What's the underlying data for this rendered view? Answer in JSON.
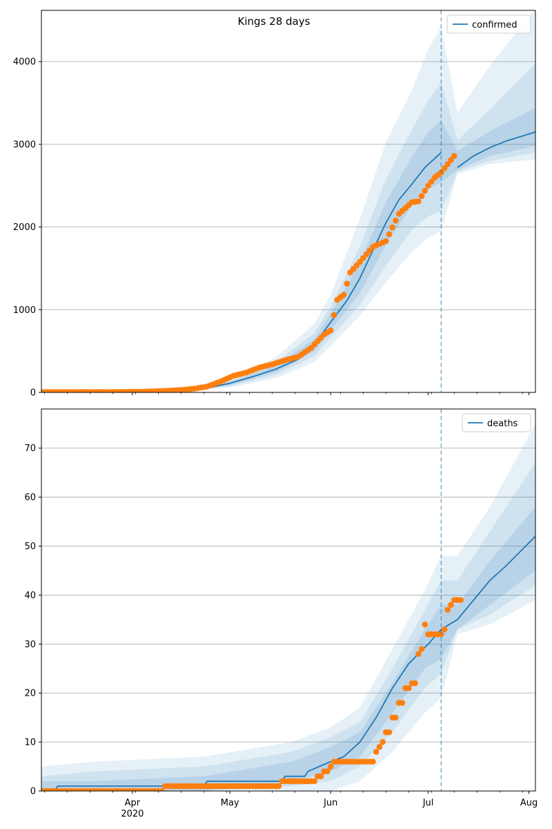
{
  "title": "Kings 28 days",
  "colors": {
    "model": "#1f77b4",
    "observed": "#ff7f0e",
    "band": "#1f77b4",
    "grid": "#b0b0b0",
    "vline": "#1f77b4"
  },
  "x_axis": {
    "type": "date",
    "range": [
      "2020-03-04",
      "2020-08-03"
    ],
    "major_ticks": [
      {
        "date": "2020-04-01",
        "label": "Apr"
      },
      {
        "date": "2020-05-01",
        "label": "May"
      },
      {
        "date": "2020-06-01",
        "label": "Jun"
      },
      {
        "date": "2020-07-01",
        "label": "Jul"
      },
      {
        "date": "2020-08-01",
        "label": "Aug"
      }
    ],
    "year_label": {
      "date": "2020-04-01",
      "label": "2020"
    },
    "minor_tick_interval_days": 7
  },
  "chart_data": [
    {
      "type": "line",
      "panel": "top",
      "title": "Kings 28 days",
      "legend": {
        "label": "confirmed",
        "position": "top-right"
      },
      "ylim": [
        0,
        4620
      ],
      "yticks": [
        0,
        1000,
        2000,
        3000,
        4000
      ],
      "grid": "y",
      "forecast_start": "2020-07-05",
      "model": {
        "name": "confirmed",
        "dates": [
          "2020-03-04",
          "2020-03-20",
          "2020-04-01",
          "2020-04-15",
          "2020-04-25",
          "2020-05-01",
          "2020-05-08",
          "2020-05-15",
          "2020-05-22",
          "2020-05-27",
          "2020-06-01",
          "2020-06-06",
          "2020-06-10",
          "2020-06-14",
          "2020-06-18",
          "2020-06-22",
          "2020-06-26",
          "2020-06-30",
          "2020-07-05",
          "2020-07-10",
          "2020-07-15",
          "2020-07-20",
          "2020-07-25",
          "2020-08-03"
        ],
        "values": [
          5,
          8,
          10,
          20,
          60,
          110,
          190,
          280,
          400,
          580,
          850,
          1110,
          1380,
          1720,
          2050,
          2330,
          2520,
          2720,
          2900,
          2720,
          2860,
          2960,
          3040,
          3150
        ]
      },
      "bands": [
        {
          "level": "outer",
          "dates": [
            "2020-03-04",
            "2020-04-15",
            "2020-05-01",
            "2020-05-15",
            "2020-05-27",
            "2020-06-01",
            "2020-06-10",
            "2020-06-18",
            "2020-06-26",
            "2020-07-01",
            "2020-07-05",
            "2020-07-10",
            "2020-07-20",
            "2020-08-03"
          ],
          "upper": [
            15,
            35,
            170,
            420,
            830,
            1180,
            2100,
            3020,
            3650,
            4150,
            4420,
            3380,
            3950,
            4650
          ],
          "lower": [
            0,
            8,
            60,
            170,
            370,
            560,
            930,
            1330,
            1700,
            1870,
            1950,
            2640,
            2760,
            2820
          ]
        },
        {
          "level": "middle",
          "dates": [
            "2020-03-04",
            "2020-04-15",
            "2020-05-01",
            "2020-05-15",
            "2020-05-27",
            "2020-06-01",
            "2020-06-10",
            "2020-06-18",
            "2020-06-26",
            "2020-07-01",
            "2020-07-05",
            "2020-07-10",
            "2020-07-20",
            "2020-08-03"
          ],
          "upper": [
            11,
            28,
            140,
            360,
            720,
            1040,
            1760,
            2580,
            3180,
            3530,
            3750,
            3050,
            3420,
            3980
          ],
          "lower": [
            1,
            11,
            75,
            210,
            440,
            660,
            1060,
            1530,
            1970,
            2130,
            2190,
            2670,
            2800,
            2900
          ]
        },
        {
          "level": "inner",
          "dates": [
            "2020-03-04",
            "2020-04-15",
            "2020-05-01",
            "2020-05-15",
            "2020-05-27",
            "2020-06-01",
            "2020-06-10",
            "2020-06-18",
            "2020-06-26",
            "2020-07-01",
            "2020-07-05",
            "2020-07-10",
            "2020-07-20",
            "2020-08-03"
          ],
          "upper": [
            8,
            24,
            125,
            320,
            650,
            950,
            1580,
            2300,
            2850,
            3150,
            3290,
            2920,
            3160,
            3440
          ],
          "lower": [
            3,
            15,
            90,
            240,
            500,
            750,
            1200,
            1780,
            2260,
            2460,
            2540,
            2690,
            2860,
            2980
          ]
        }
      ],
      "observed": {
        "name": "observed",
        "dates": [
          "2020-03-04",
          "2020-03-12",
          "2020-03-20",
          "2020-03-28",
          "2020-04-05",
          "2020-04-12",
          "2020-04-16",
          "2020-04-20",
          "2020-04-24",
          "2020-04-28",
          "2020-05-02",
          "2020-05-06",
          "2020-05-10",
          "2020-05-14",
          "2020-05-18",
          "2020-05-22",
          "2020-05-26",
          "2020-05-30",
          "2020-06-01",
          "2020-06-03",
          "2020-06-05",
          "2020-06-07",
          "2020-06-10",
          "2020-06-14",
          "2020-06-18",
          "2020-06-22",
          "2020-06-26",
          "2020-06-28",
          "2020-07-01",
          "2020-07-03",
          "2020-07-05",
          "2020-07-07",
          "2020-07-09"
        ],
        "values": [
          5,
          5,
          5,
          5,
          10,
          20,
          30,
          45,
          70,
          130,
          200,
          240,
          300,
          340,
          390,
          430,
          540,
          700,
          750,
          1120,
          1180,
          1450,
          1580,
          1760,
          1830,
          2160,
          2300,
          2310,
          2500,
          2600,
          2660,
          2760,
          2860
        ]
      }
    },
    {
      "type": "line",
      "panel": "bottom",
      "legend": {
        "label": "deaths",
        "position": "top-right"
      },
      "ylim": [
        0,
        78
      ],
      "yticks": [
        0,
        10,
        20,
        30,
        40,
        50,
        60,
        70
      ],
      "grid": "y",
      "forecast_start": "2020-07-05",
      "model": {
        "name": "deaths",
        "dates": [
          "2020-03-04",
          "2020-03-08",
          "2020-03-09",
          "2020-04-23",
          "2020-04-24",
          "2020-05-17",
          "2020-05-18",
          "2020-05-24",
          "2020-05-25",
          "2020-06-01",
          "2020-06-05",
          "2020-06-10",
          "2020-06-15",
          "2020-06-20",
          "2020-06-25",
          "2020-07-01",
          "2020-07-05",
          "2020-07-10",
          "2020-07-15",
          "2020-07-20",
          "2020-07-25",
          "2020-08-03"
        ],
        "values": [
          0,
          0,
          1,
          1,
          2,
          2,
          3,
          3,
          4,
          6,
          7,
          10,
          15,
          21,
          26,
          30,
          33,
          35,
          39,
          43,
          46,
          52
        ]
      },
      "bands": [
        {
          "level": "outer",
          "dates": [
            "2020-03-04",
            "2020-03-20",
            "2020-04-23",
            "2020-05-20",
            "2020-06-01",
            "2020-06-10",
            "2020-06-20",
            "2020-06-30",
            "2020-07-05",
            "2020-07-10",
            "2020-07-20",
            "2020-08-03"
          ],
          "upper": [
            5,
            6,
            7,
            10,
            13,
            17,
            29,
            41,
            48,
            48,
            58,
            75
          ],
          "lower": [
            0,
            0,
            0,
            0,
            0,
            2,
            8,
            16,
            19,
            32,
            34,
            39
          ]
        },
        {
          "level": "middle",
          "dates": [
            "2020-03-04",
            "2020-03-20",
            "2020-04-23",
            "2020-05-20",
            "2020-06-01",
            "2020-06-10",
            "2020-06-20",
            "2020-06-30",
            "2020-07-05",
            "2020-07-10",
            "2020-07-20",
            "2020-08-03"
          ],
          "upper": [
            3,
            4,
            5,
            8,
            11,
            14,
            25,
            37,
            43,
            43,
            53,
            67
          ],
          "lower": [
            0,
            0,
            0,
            1,
            2,
            5,
            12,
            21,
            24,
            33,
            36,
            42
          ]
        },
        {
          "level": "inner",
          "dates": [
            "2020-03-04",
            "2020-03-20",
            "2020-04-23",
            "2020-05-20",
            "2020-06-01",
            "2020-06-10",
            "2020-06-20",
            "2020-06-30",
            "2020-07-05",
            "2020-07-10",
            "2020-07-20",
            "2020-08-03"
          ],
          "upper": [
            2,
            2,
            3,
            6,
            9,
            12,
            22,
            33,
            38,
            38,
            47,
            58
          ],
          "lower": [
            0,
            0,
            0,
            2,
            4,
            7,
            16,
            25,
            27,
            33,
            38,
            45
          ]
        }
      ],
      "observed": {
        "name": "observed",
        "dates": [
          "2020-03-04",
          "2020-03-20",
          "2020-04-10",
          "2020-04-11",
          "2020-04-20",
          "2020-04-30",
          "2020-05-10",
          "2020-05-16",
          "2020-05-17",
          "2020-05-25",
          "2020-05-28",
          "2020-05-30",
          "2020-06-01",
          "2020-06-02",
          "2020-06-03",
          "2020-06-08",
          "2020-06-13",
          "2020-06-15",
          "2020-06-16",
          "2020-06-17",
          "2020-06-18",
          "2020-06-20",
          "2020-06-22",
          "2020-06-24",
          "2020-06-26",
          "2020-06-28",
          "2020-06-29",
          "2020-06-30",
          "2020-07-01",
          "2020-07-02",
          "2020-07-04",
          "2020-07-06",
          "2020-07-07",
          "2020-07-08",
          "2020-07-09",
          "2020-07-11"
        ],
        "values": [
          0,
          0,
          0,
          1,
          1,
          1,
          1,
          1,
          2,
          2,
          3,
          4,
          5,
          6,
          6,
          6,
          6,
          8,
          9,
          10,
          12,
          15,
          18,
          21,
          22,
          28,
          29,
          34,
          32,
          32,
          32,
          33,
          37,
          38,
          39,
          39
        ]
      }
    }
  ]
}
